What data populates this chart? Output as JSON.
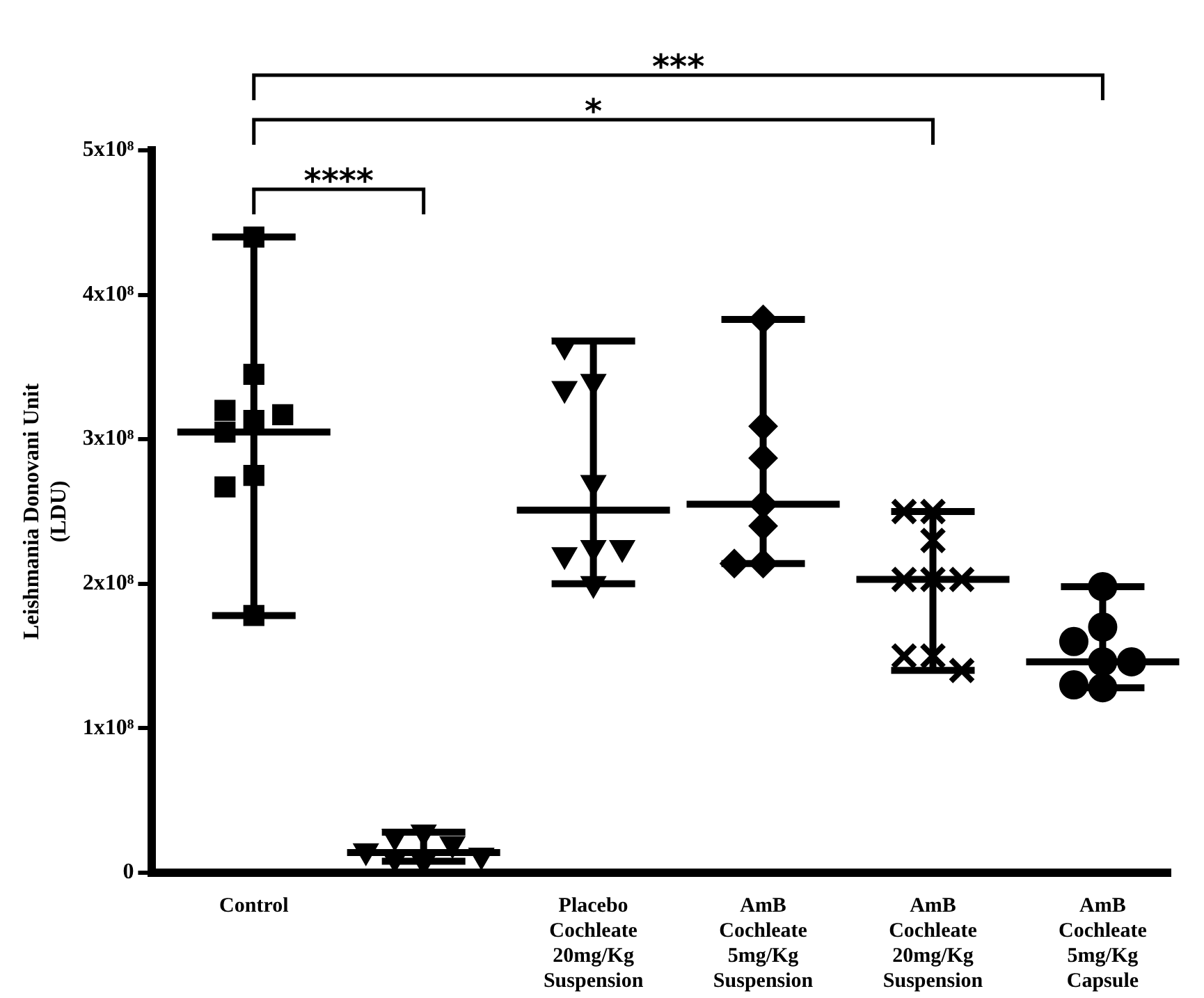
{
  "chart_data": {
    "type": "scatter",
    "ylabel": "Leishmania Donovani Unit (LDU)",
    "categories": [
      "Control",
      null,
      "Placebo Cochleate 20mg/Kg Suspension",
      "AmB Cochleate 5mg/Kg Suspension",
      "AmB Cochleate 20mg/Kg Suspension",
      "AmB Cochleate 5mg/Kg Capsule"
    ],
    "ylim": [
      0,
      500000000
    ],
    "yticks": [
      0,
      {
        "value": 100000000,
        "label": "1x10⁸"
      },
      {
        "value": 200000000,
        "label": "2x10⁸"
      },
      {
        "value": 300000000,
        "label": "3x10⁸"
      },
      {
        "value": 400000000,
        "label": "4x10⁸"
      },
      {
        "value": 500000000,
        "label": "5x10⁸"
      }
    ],
    "grid": false,
    "legend": false,
    "annotations": [
      "****",
      "*",
      "***"
    ],
    "series": [
      {
        "type": "scatter",
        "marker": "square",
        "color": "#000000",
        "x": [
          "Control",
          "Control",
          "Control",
          "Control",
          "Control",
          "Control",
          "Control",
          "Control",
          "Control"
        ],
        "values": [
          440000000,
          345000000,
          313000000,
          305000000,
          317000000,
          320000000,
          275000000,
          267000000,
          178000000
        ]
      },
      {
        "type": "scatter",
        "marker": "triangle",
        "color": "#000000",
        "x": [
          null,
          null,
          null,
          null,
          null,
          null,
          null
        ],
        "values": [
          28000000,
          25000000,
          20000000,
          15000000,
          10000000,
          12000000,
          8000000
        ]
      },
      {
        "type": "scatter",
        "marker": "triangle",
        "color": "#000000",
        "x": [
          "Placebo Cochleate 20mg/Kg Suspension",
          "Placebo Cochleate 20mg/Kg Suspension",
          "Placebo Cochleate 20mg/Kg Suspension",
          "Placebo Cochleate 20mg/Kg Suspension",
          "Placebo Cochleate 20mg/Kg Suspension",
          "Placebo Cochleate 20mg/Kg Suspension",
          "Placebo Cochleate 20mg/Kg Suspension",
          "Placebo Cochleate 20mg/Kg Suspension"
        ],
        "values": [
          365000000,
          340000000,
          335000000,
          270000000,
          225000000,
          220000000,
          225000000,
          200000000
        ]
      },
      {
        "type": "scatter",
        "marker": "diamond",
        "color": "#000000",
        "x": [
          "AmB Cochleate 5mg/Kg Suspension",
          "AmB Cochleate 5mg/Kg Suspension",
          "AmB Cochleate 5mg/Kg Suspension",
          "AmB Cochleate 5mg/Kg Suspension",
          "AmB Cochleate 5mg/Kg Suspension",
          "AmB Cochleate 5mg/Kg Suspension",
          "AmB Cochleate 5mg/Kg Suspension"
        ],
        "values": [
          383000000,
          309000000,
          287000000,
          255000000,
          240000000,
          214000000,
          214000000
        ]
      },
      {
        "type": "scatter",
        "marker": "cross",
        "color": "#000000",
        "x": [
          "AmB Cochleate 20mg/Kg Suspension",
          "AmB Cochleate 20mg/Kg Suspension",
          "AmB Cochleate 20mg/Kg Suspension",
          "AmB Cochleate 20mg/Kg Suspension",
          "AmB Cochleate 20mg/Kg Suspension",
          "AmB Cochleate 20mg/Kg Suspension",
          "AmB Cochleate 20mg/Kg Suspension",
          "AmB Cochleate 20mg/Kg Suspension",
          "AmB Cochleate 20mg/Kg Suspension"
        ],
        "values": [
          250000000,
          250000000,
          230000000,
          203000000,
          203000000,
          203000000,
          150000000,
          150000000,
          140000000
        ]
      },
      {
        "type": "scatter",
        "marker": "circle",
        "color": "#000000",
        "x": [
          "AmB Cochleate 5mg/Kg Capsule",
          "AmB Cochleate 5mg/Kg Capsule",
          "AmB Cochleate 5mg/Kg Capsule",
          "AmB Cochleate 5mg/Kg Capsule",
          "AmB Cochleate 5mg/Kg Capsule",
          "AmB Cochleate 5mg/Kg Capsule",
          "AmB Cochleate 5mg/Kg Capsule"
        ],
        "values": [
          198000000,
          170000000,
          160000000,
          146000000,
          146000000,
          130000000,
          128000000
        ]
      },
      {
        "type": "box",
        "color": "#000000",
        "boxes": [
          {
            "low": 178000000,
            "q1": 305000000,
            "median": 305000000,
            "q3": 305000000,
            "high": 440000000
          },
          {
            "low": 8000000,
            "q1": 14000000,
            "median": 14000000,
            "q3": 14000000,
            "high": 28000000
          },
          {
            "low": 200000000,
            "q1": 251000000,
            "median": 251000000,
            "q3": 251000000,
            "high": 368000000
          },
          {
            "low": 214000000,
            "q1": 255000000,
            "median": 255000000,
            "q3": 255000000,
            "high": 383000000
          },
          {
            "low": 140000000,
            "q1": 203000000,
            "median": 203000000,
            "q3": 203000000,
            "high": 250000000
          },
          {
            "low": 128000000,
            "q1": 146000000,
            "median": 146000000,
            "q3": 146000000,
            "high": 198000000
          }
        ]
      }
    ]
  }
}
